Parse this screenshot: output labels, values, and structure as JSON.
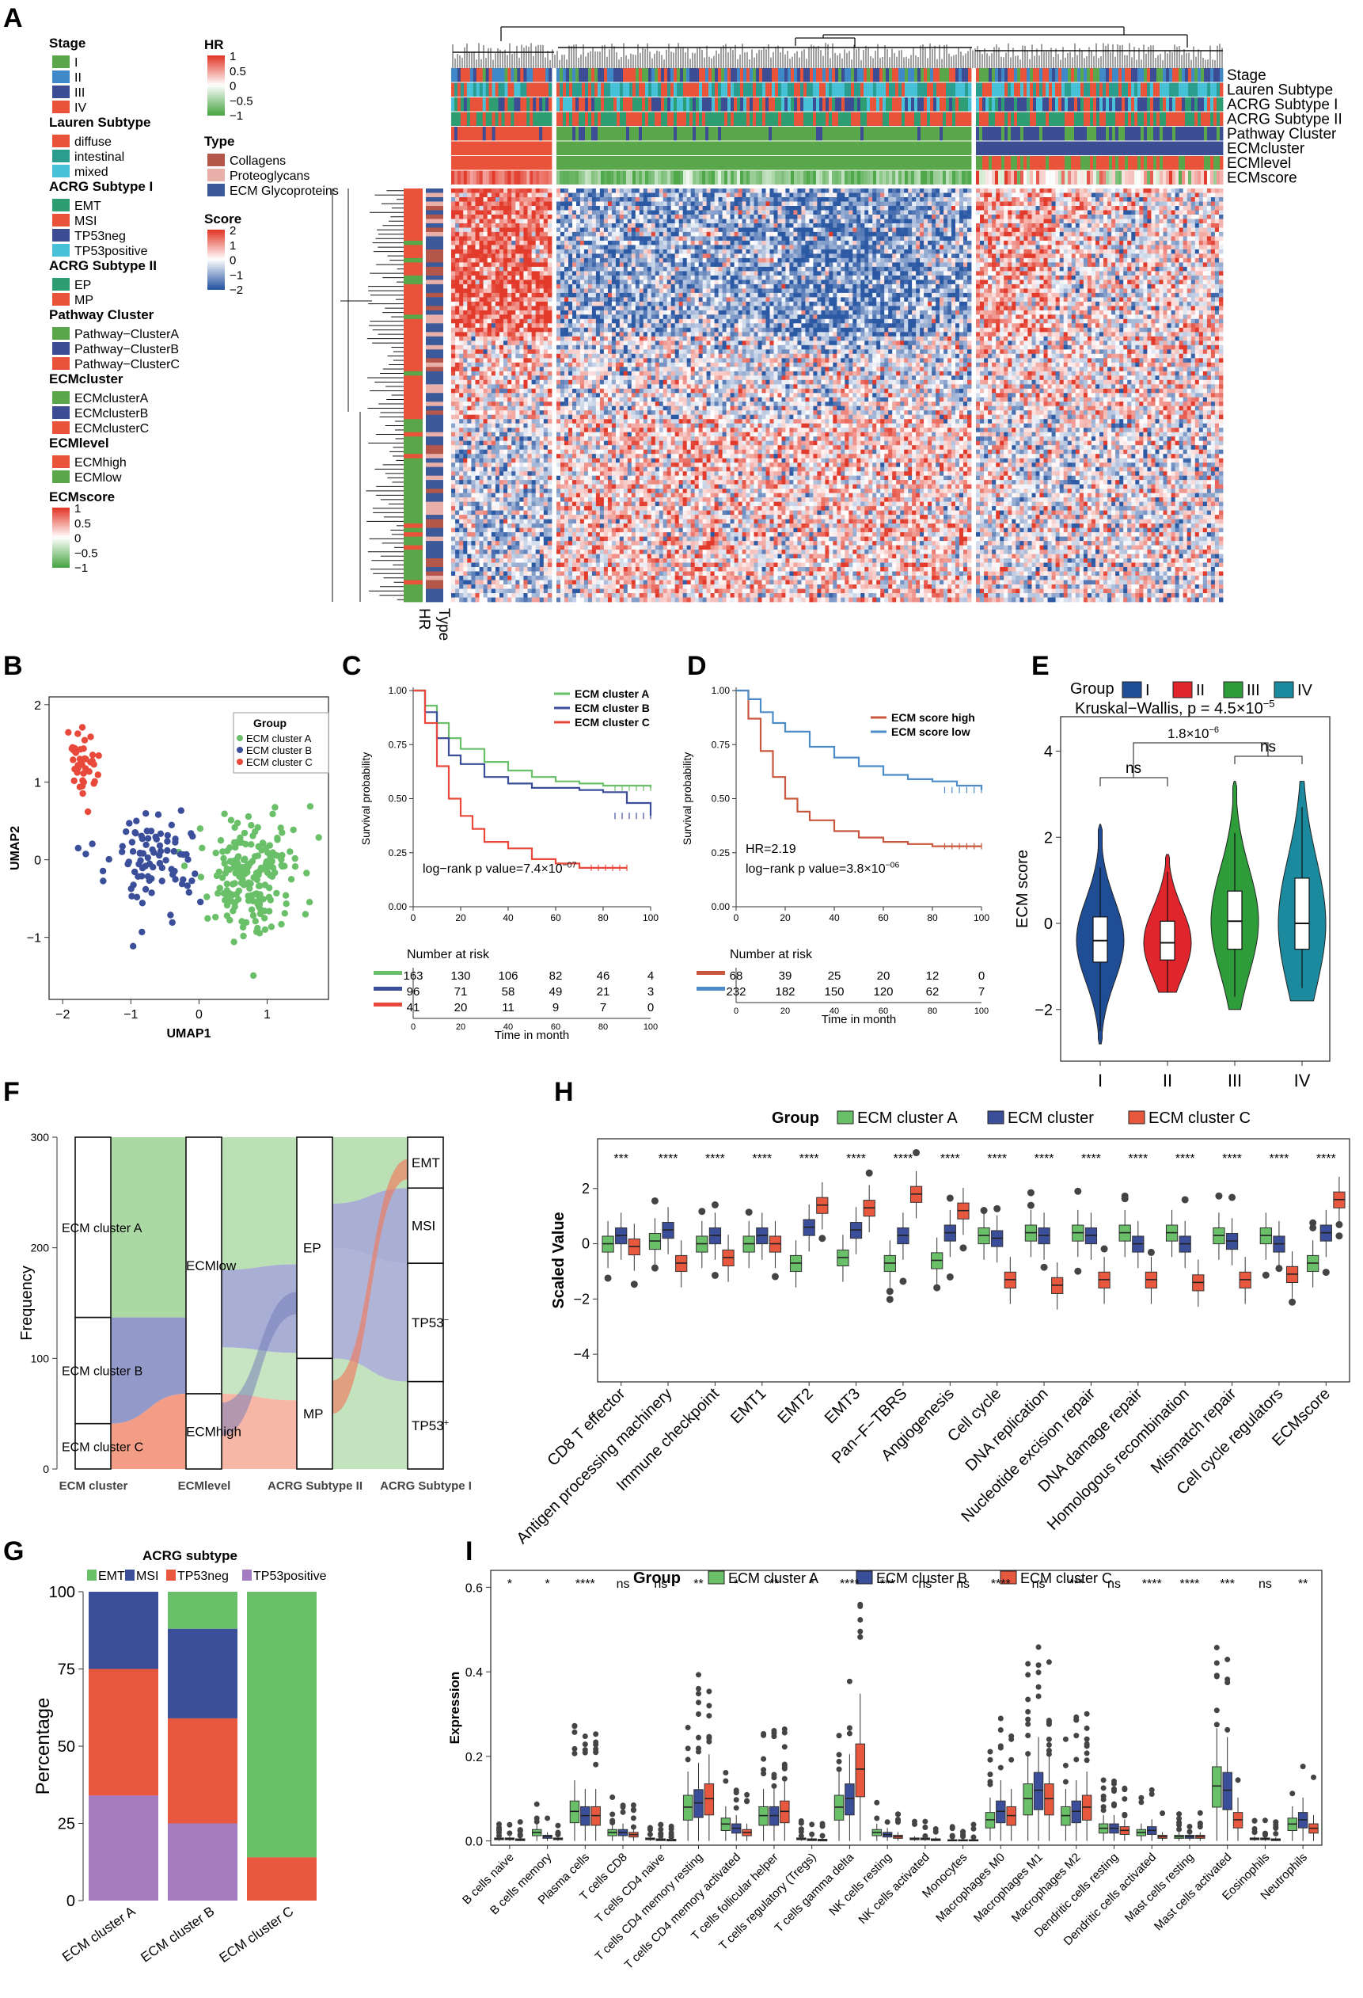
{
  "panels": {
    "A": "A",
    "B": "B",
    "C": "C",
    "D": "D",
    "E": "E",
    "F": "F",
    "G": "G",
    "H": "H",
    "I": "I"
  },
  "heatmap": {
    "legends": [
      {
        "title": "Stage",
        "items": [
          {
            "label": "I",
            "color": "#5aa64a"
          },
          {
            "label": "II",
            "color": "#3f89c8"
          },
          {
            "label": "III",
            "color": "#3c4d94"
          },
          {
            "label": "IV",
            "color": "#e8533a"
          }
        ]
      },
      {
        "title": "Lauren Subtype",
        "items": [
          {
            "label": "diffuse",
            "color": "#e8533a"
          },
          {
            "label": "intestinal",
            "color": "#2a9d8f"
          },
          {
            "label": "mixed",
            "color": "#47c1d8"
          }
        ]
      },
      {
        "title": "ACRG Subtype I",
        "items": [
          {
            "label": "EMT",
            "color": "#2e9e72"
          },
          {
            "label": "MSI",
            "color": "#e8533a"
          },
          {
            "label": "TP53neg",
            "color": "#3c4d94"
          },
          {
            "label": "TP53positive",
            "color": "#47c1d8"
          }
        ]
      },
      {
        "title": "ACRG Subtype II",
        "items": [
          {
            "label": "EP",
            "color": "#2e9e72"
          },
          {
            "label": "MP",
            "color": "#e8533a"
          }
        ]
      },
      {
        "title": "Pathway Cluster",
        "items": [
          {
            "label": "Pathway−ClusterA",
            "color": "#5aa64a"
          },
          {
            "label": "Pathway−ClusterB",
            "color": "#3c4d94"
          },
          {
            "label": "Pathway−ClusterC",
            "color": "#e8533a"
          }
        ]
      },
      {
        "title": "ECMcluster",
        "items": [
          {
            "label": "ECMclusterA",
            "color": "#5aa64a"
          },
          {
            "label": "ECMclusterB",
            "color": "#3c4d94"
          },
          {
            "label": "ECMclusterC",
            "color": "#e8533a"
          }
        ]
      },
      {
        "title": "ECMlevel",
        "items": [
          {
            "label": "ECMhigh",
            "color": "#e8533a"
          },
          {
            "label": "ECMlow",
            "color": "#5aa64a"
          }
        ]
      }
    ],
    "ecmscore_legend": {
      "title": "ECMscore",
      "ticks": [
        "1",
        "0.5",
        "0",
        "−0.5",
        "−1"
      ]
    },
    "hr_legend": {
      "title": "HR",
      "ticks": [
        "1",
        "0.5",
        "0",
        "−0.5",
        "−1"
      ]
    },
    "type_legend": {
      "title": "Type",
      "items": [
        {
          "label": "Collagens",
          "color": "#b5564a"
        },
        {
          "label": "Proteoglycans",
          "color": "#e8b0a8"
        },
        {
          "label": "ECM Glycoproteins",
          "color": "#3c5a9a"
        }
      ]
    },
    "score_legend": {
      "title": "Score",
      "ticks": [
        "2",
        "1",
        "0",
        "−1",
        "−2"
      ]
    },
    "track_labels": [
      "Stage",
      "Lauren Subtype",
      "ACRG Subtype I",
      "ACRG Subtype II",
      "Pathway Cluster",
      "ECMcluster",
      "ECMlevel",
      "ECMscore"
    ],
    "col_labels": [
      "HR",
      "Type"
    ]
  },
  "chart_data": [
    {
      "panel": "B",
      "type": "scatter",
      "xlabel": "UMAP1",
      "ylabel": "UMAP2",
      "xticks": [
        "−2",
        "−1",
        "0",
        "1"
      ],
      "yticks": [
        "2",
        "1",
        "0",
        "−1"
      ],
      "xlim": [
        -2.2,
        1.9
      ],
      "ylim": [
        -1.8,
        2.1
      ],
      "legend_title": "Group",
      "series": [
        {
          "name": "ECM cluster A",
          "color": "#6abf69",
          "center": [
            0.75,
            -0.2
          ],
          "spread": [
            0.6,
            0.7
          ],
          "n": 200
        },
        {
          "name": "ECM cluster B",
          "color": "#3a4e9a",
          "center": [
            -0.7,
            -0.1
          ],
          "spread": [
            0.55,
            0.6
          ],
          "n": 90
        },
        {
          "name": "ECM cluster C",
          "color": "#e8493a",
          "center": [
            -1.7,
            1.3
          ],
          "spread": [
            0.2,
            0.4
          ],
          "n": 40
        }
      ]
    },
    {
      "panel": "C",
      "type": "line",
      "ylabel": "Survival probability",
      "xlabel": "Time in month",
      "annotation": "log−rank p value=7.4×10",
      "annotation_exp": "−07",
      "yticks": [
        "1.00",
        "0.75",
        "0.50",
        "0.25",
        "0.00"
      ],
      "xticks": [
        "0",
        "20",
        "40",
        "60",
        "80",
        "100"
      ],
      "risk_title": "Number at risk",
      "series": [
        {
          "name": "ECM cluster A",
          "color": "#6abf69",
          "x": [
            0,
            5,
            10,
            15,
            20,
            30,
            40,
            50,
            60,
            70,
            80,
            90,
            100
          ],
          "y": [
            1,
            0.93,
            0.85,
            0.78,
            0.73,
            0.67,
            0.63,
            0.6,
            0.58,
            0.57,
            0.56,
            0.56,
            0.55
          ],
          "risk": [
            "163",
            "130",
            "106",
            "82",
            "46",
            "4"
          ]
        },
        {
          "name": "ECM cluster B",
          "color": "#3a4e9a",
          "x": [
            0,
            5,
            10,
            15,
            20,
            30,
            40,
            50,
            60,
            70,
            80,
            90,
            100
          ],
          "y": [
            1,
            0.9,
            0.78,
            0.7,
            0.66,
            0.6,
            0.57,
            0.55,
            0.55,
            0.54,
            0.53,
            0.48,
            0.42
          ],
          "risk": [
            "96",
            "71",
            "58",
            "49",
            "21",
            "3"
          ]
        },
        {
          "name": "ECM cluster C",
          "color": "#e8493a",
          "x": [
            0,
            5,
            10,
            15,
            20,
            25,
            30,
            40,
            50,
            60,
            70,
            80,
            90
          ],
          "y": [
            1,
            0.85,
            0.65,
            0.5,
            0.42,
            0.36,
            0.3,
            0.27,
            0.22,
            0.2,
            0.18,
            0.18,
            0.18
          ],
          "risk": [
            "41",
            "20",
            "11",
            "9",
            "7",
            "0"
          ]
        }
      ]
    },
    {
      "panel": "D",
      "type": "line",
      "ylabel": "Survival probability",
      "xlabel": "Time in month",
      "hr": "HR=2.19",
      "annotation": "log−rank p value=3.8×10",
      "annotation_exp": "−06",
      "yticks": [
        "1.00",
        "0.75",
        "0.50",
        "0.25",
        "0.00"
      ],
      "xticks": [
        "0",
        "20",
        "40",
        "60",
        "80",
        "100"
      ],
      "risk_title": "Number at risk",
      "series": [
        {
          "name": "ECM score high",
          "color": "#c8573e",
          "x": [
            0,
            5,
            10,
            15,
            20,
            25,
            30,
            40,
            50,
            60,
            70,
            80,
            90,
            100
          ],
          "y": [
            1,
            0.87,
            0.72,
            0.6,
            0.5,
            0.44,
            0.4,
            0.35,
            0.32,
            0.3,
            0.29,
            0.28,
            0.28,
            0.28
          ],
          "risk": [
            "68",
            "39",
            "25",
            "20",
            "12",
            "0"
          ]
        },
        {
          "name": "ECM score low",
          "color": "#4c8cc8",
          "x": [
            0,
            5,
            10,
            15,
            20,
            30,
            40,
            50,
            60,
            70,
            80,
            90,
            100
          ],
          "y": [
            1,
            0.96,
            0.9,
            0.85,
            0.81,
            0.74,
            0.69,
            0.65,
            0.61,
            0.59,
            0.58,
            0.56,
            0.54
          ],
          "risk": [
            "232",
            "182",
            "150",
            "120",
            "62",
            "7"
          ]
        }
      ]
    },
    {
      "panel": "E",
      "type": "violin",
      "ylabel": "ECM score",
      "legend_title": "Group",
      "stat": "Kruskal−Wallis, p = 4.5×10",
      "stat_exp": "−5",
      "bracket_p": "1.8×10",
      "bracket_exp": "−6",
      "ns": "ns",
      "yticks": [
        "4",
        "2",
        "0",
        "−2"
      ],
      "ylim": [
        -3.2,
        4.8
      ],
      "groups": [
        {
          "name": "I",
          "color": "#1f4e96",
          "median": -0.4,
          "q1": -0.9,
          "q3": 0.15,
          "wl": -2.5,
          "wh": 1.3,
          "min": -2.8,
          "max": 2.3
        },
        {
          "name": "II",
          "color": "#e0262c",
          "median": -0.45,
          "q1": -0.85,
          "q3": 0.05,
          "wl": -1.6,
          "wh": 1.2,
          "min": -1.6,
          "max": 1.6
        },
        {
          "name": "III",
          "color": "#2f9c3a",
          "median": 0.05,
          "q1": -0.6,
          "q3": 0.75,
          "wl": -1.7,
          "wh": 2.1,
          "min": -2.0,
          "max": 3.3
        },
        {
          "name": "IV",
          "color": "#1b8a9e",
          "median": 0.0,
          "q1": -0.6,
          "q3": 1.05,
          "wl": -1.5,
          "wh": 2.7,
          "min": -1.8,
          "max": 3.3
        }
      ]
    },
    {
      "panel": "F",
      "type": "alluvial",
      "ylabel": "Frequency",
      "yticks": [
        "300",
        "200",
        "100",
        "0"
      ],
      "axes": [
        "ECM cluster",
        "ECMlevel",
        "ACRG Subtype II",
        "ACRG Subtype I"
      ],
      "nodes": [
        [
          "ECM cluster A",
          "ECM cluster B",
          "ECM cluster C"
        ],
        [
          "ECMlow",
          "ECMhigh"
        ],
        [
          "EP",
          "MP"
        ],
        [
          "EMT",
          "MSI",
          "TP53",
          "TP53"
        ]
      ],
      "tp53_suffix": [
        "−",
        "+"
      ],
      "counts": {
        "ECM cluster A": 163,
        "ECM cluster B": 96,
        "ECM cluster C": 41,
        "ECMlow": 232,
        "ECMhigh": 68,
        "EP": 200,
        "MP": 100,
        "EMT": 46,
        "MSI": 68,
        "TP53neg": 107,
        "TP53pos": 79
      }
    },
    {
      "panel": "G",
      "type": "stacked_bar",
      "title": "ACRG subtype",
      "ylabel": "Percentage",
      "yticks": [
        "100",
        "75",
        "50",
        "25",
        "0"
      ],
      "categories": [
        "ECM cluster A",
        "ECM cluster B",
        "ECM cluster C"
      ],
      "series": [
        {
          "name": "EMT",
          "color": "#6abf69",
          "values": [
            0,
            12,
            86
          ]
        },
        {
          "name": "MSI",
          "color": "#3a4e9a",
          "values": [
            25,
            29,
            0
          ]
        },
        {
          "name": "TP53neg",
          "color": "#e8583f",
          "values": [
            41,
            34,
            14
          ]
        },
        {
          "name": "TP53positive",
          "color": "#a57cc0",
          "values": [
            34,
            25,
            0
          ]
        }
      ]
    },
    {
      "panel": "H",
      "type": "boxplot",
      "legend_title": "Group",
      "ylabel": "Scaled Value",
      "yticks": [
        "2",
        "0",
        "−2",
        "−4"
      ],
      "ylim": [
        -5,
        3.8
      ],
      "series": [
        {
          "name": "ECM cluster A",
          "color": "#6abf69"
        },
        {
          "name": "ECM cluster",
          "color": "#3a4e9a"
        },
        {
          "name": "ECM cluster C",
          "color": "#e8583f"
        }
      ],
      "categories": [
        "CD8 T effector",
        "Antigen processing machinery",
        "Immune checkpoint",
        "EMT1",
        "EMT2",
        "EMT3",
        "Pan−F−TBRS",
        "Angiogenesis",
        "Cell cycle",
        "DNA replication",
        "Nucleotide excision repair",
        "DNA damage repair",
        "Homologous recombination",
        "Mismatch repair",
        "Cell cycle regulators",
        "ECMscore"
      ],
      "sig": [
        "***",
        "****",
        "****",
        "****",
        "****",
        "****",
        "****",
        "****",
        "****",
        "****",
        "****",
        "****",
        "****",
        "****",
        "****",
        "****"
      ],
      "medians": [
        [
          0,
          0.3,
          -0.1
        ],
        [
          0.1,
          0.5,
          -0.7
        ],
        [
          0,
          0.3,
          -0.5
        ],
        [
          0,
          0.3,
          0
        ],
        [
          -0.7,
          0.6,
          1.4
        ],
        [
          -0.5,
          0.5,
          1.3
        ],
        [
          -0.7,
          0.3,
          1.8
        ],
        [
          -0.6,
          0.4,
          1.2
        ],
        [
          0.3,
          0.2,
          -1.3
        ],
        [
          0.4,
          0.3,
          -1.5
        ],
        [
          0.4,
          0.3,
          -1.3
        ],
        [
          0.4,
          0,
          -1.3
        ],
        [
          0.4,
          0,
          -1.4
        ],
        [
          0.3,
          0.1,
          -1.3
        ],
        [
          0.3,
          0,
          -1.1
        ],
        [
          -0.7,
          0.4,
          1.6
        ]
      ]
    },
    {
      "panel": "I",
      "type": "boxplot",
      "legend_title": "Group",
      "ylabel": "Expression",
      "yticks": [
        "0.6",
        "0.4",
        "0.2",
        "0.0"
      ],
      "ylim": [
        -0.01,
        0.64
      ],
      "series": [
        {
          "name": "ECM cluster A",
          "color": "#6abf69"
        },
        {
          "name": "ECM cluster B",
          "color": "#3a4e9a"
        },
        {
          "name": "ECM cluster C",
          "color": "#e8583f"
        }
      ],
      "categories": [
        "B cells naive",
        "B cells memory",
        "Plasma cells",
        "T cells CD8",
        "T cells CD4 naive",
        "T cells CD4 memory resting",
        "T cells CD4 memory activated",
        "T cells follicular helper",
        "T cells regulatory (Tregs)",
        "T cells gamma delta",
        "NK cells resting",
        "NK cells activated",
        "Monocytes",
        "Macrophages M0",
        "Macrophages M1",
        "Macrophages M2",
        "Dendritic cells resting",
        "Dendritic cells activated",
        "Mast cells resting",
        "Mast cells activated",
        "Eosinophils",
        "Neutrophils"
      ],
      "sig": [
        "*",
        "*",
        "****",
        "ns",
        "ns",
        "**",
        "*",
        "**",
        "*",
        "****",
        "***",
        "ns",
        "ns",
        "****",
        "ns",
        "***",
        "ns",
        "****",
        "****",
        "***",
        "ns",
        "**"
      ],
      "medians": [
        [
          0.005,
          0.005,
          0.003
        ],
        [
          0.02,
          0.01,
          0.005
        ],
        [
          0.07,
          0.06,
          0.06
        ],
        [
          0.02,
          0.02,
          0.015
        ],
        [
          0.005,
          0.003,
          0.002
        ],
        [
          0.08,
          0.09,
          0.1
        ],
        [
          0.04,
          0.03,
          0.02
        ],
        [
          0.06,
          0.06,
          0.07
        ],
        [
          0.005,
          0.003,
          0.002
        ],
        [
          0.08,
          0.1,
          0.17
        ],
        [
          0.02,
          0.015,
          0.01
        ],
        [
          0.005,
          0.005,
          0.003
        ],
        [
          0.001,
          0.001,
          0.001
        ],
        [
          0.05,
          0.07,
          0.06
        ],
        [
          0.1,
          0.12,
          0.1
        ],
        [
          0.06,
          0.07,
          0.08
        ],
        [
          0.03,
          0.03,
          0.025
        ],
        [
          0.02,
          0.025,
          0.01
        ],
        [
          0.01,
          0.01,
          0.01
        ],
        [
          0.13,
          0.12,
          0.05
        ],
        [
          0.005,
          0.005,
          0.003
        ],
        [
          0.04,
          0.05,
          0.03
        ]
      ]
    }
  ]
}
